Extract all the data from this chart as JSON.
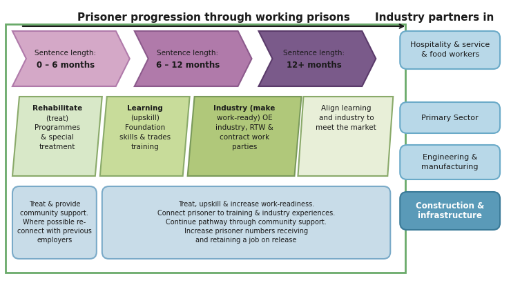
{
  "title_left": "Prisoner progression through working prisons",
  "title_right": "Industry partners in",
  "bg_color": "#ffffff",
  "outer_border_color": "#5a8a5a",
  "arrow_color": "#2c2c2c",
  "sentence_boxes": [
    {
      "label": "Sentence length:\n0 – 6 months",
      "color": "#d4a8c7",
      "border": "#b07aaa"
    },
    {
      "label": "Sentence length:\n6 – 12 months",
      "color": "#b07aaa",
      "border": "#8c5a8c"
    },
    {
      "label": "Sentence length:\n12+ months",
      "color": "#7a5a8a",
      "border": "#5a3a6a"
    }
  ],
  "middle_boxes": [
    {
      "label": "Rehabilitate\n(treat)\nProgrammes\n& special\ntreatment",
      "bold_prefix": "Rehabilitate",
      "color": "#d8e8c8",
      "border": "#8aaa6a"
    },
    {
      "label": "Learning\n(upskill)\nFoundation\nskills & trades\ntraining",
      "bold_prefix": "Learning",
      "color": "#c8dc9a",
      "border": "#8aaa6a"
    },
    {
      "label": "Industry (make\nwork-ready) OE\nindustry, RTW &\ncontract work\nparties",
      "bold_prefix": "Industry",
      "color": "#b0c87a",
      "border": "#7a9a5a"
    },
    {
      "label": "Align learning\nand industry to\nmeet the market",
      "bold_prefix": "",
      "color": "#e8efd8",
      "border": "#8aaa6a"
    }
  ],
  "bottom_boxes": [
    {
      "label": "Treat & provide\ncommunity support.\nWhere possible re-\nconnect with previous\nemployers",
      "color": "#c8dce8",
      "border": "#7aaac8"
    },
    {
      "label": "Treat, upskill & increase work-readiness.\nConnect prisoner to training & industry experiences.\nContinue pathway through community support.\nIncrease prisoner numbers receiving\nand retaining a job on release",
      "color": "#c8dce8",
      "border": "#7aaac8"
    }
  ],
  "industry_boxes": [
    {
      "label": "Hospitality & service\n& food workers",
      "color": "#b8d8e8",
      "border": "#6aaac8",
      "bold": false
    },
    {
      "label": "Primary Sector",
      "color": "#b8d8e8",
      "border": "#6aaac8",
      "bold": false
    },
    {
      "label": "Engineering &\nmanufacturing",
      "color": "#b8d8e8",
      "border": "#6aaac8",
      "bold": false
    },
    {
      "label": "Construction &\ninfrastructure",
      "color": "#5a9ab8",
      "border": "#3a7a98",
      "bold": true
    }
  ],
  "green_rect_color": "#6aaa6a",
  "green_rect_border": "#4a8a4a"
}
